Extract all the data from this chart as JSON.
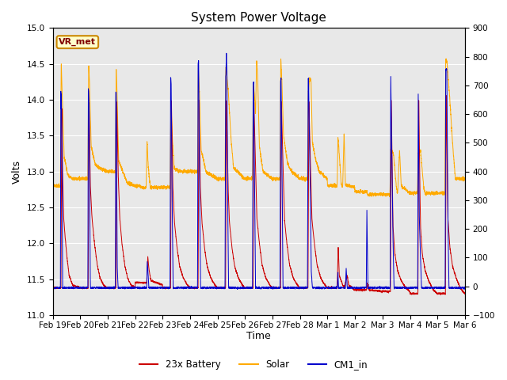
{
  "title": "System Power Voltage",
  "xlabel": "Time",
  "ylabel": "Volts",
  "ylim_left": [
    11.0,
    15.0
  ],
  "ylim_right": [
    -100,
    900
  ],
  "yticks_left": [
    11.0,
    11.5,
    12.0,
    12.5,
    13.0,
    13.5,
    14.0,
    14.5,
    15.0
  ],
  "yticks_right": [
    -100,
    0,
    100,
    200,
    300,
    400,
    500,
    600,
    700,
    800,
    900
  ],
  "xtick_labels": [
    "Feb 19",
    "Feb 20",
    "Feb 21",
    "Feb 22",
    "Feb 23",
    "Feb 24",
    "Feb 25",
    "Feb 26",
    "Feb 27",
    "Feb 28",
    "Mar 1",
    "Mar 2",
    "Mar 3",
    "Mar 4",
    "Mar 5",
    "Mar 6"
  ],
  "legend_labels": [
    "23x Battery",
    "Solar",
    "CM1_in"
  ],
  "line_colors": [
    "#cc0000",
    "#ffaa00",
    "#0000cc"
  ],
  "vr_met_label": "VR_met",
  "bg_color": "#e8e8e8",
  "title_fontsize": 11,
  "axis_label_fontsize": 9,
  "tick_fontsize": 7.5
}
